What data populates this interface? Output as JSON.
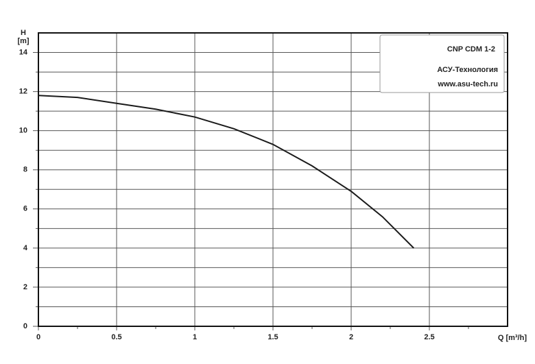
{
  "chart_data": {
    "type": "line",
    "x_label": "Q [m³/h]",
    "y_label": "H",
    "y_unit": "[m]",
    "annotations": [
      "CNP CDM 1-2",
      "АСУ-Технология",
      "www.asu-tech.ru"
    ],
    "x": [
      0,
      0.25,
      0.5,
      0.75,
      1,
      1.25,
      1.5,
      1.75,
      2,
      2.2,
      2.4
    ],
    "series": [
      {
        "color": "#1a1a1a",
        "values": [
          11.8,
          11.7,
          11.4,
          11.1,
          10.7,
          10.1,
          9.3,
          8.2,
          6.9,
          5.6,
          4.0
        ]
      }
    ],
    "xlim": [
      0,
      3
    ],
    "xticks": [
      0,
      0.5,
      1,
      1.5,
      2,
      2.5
    ],
    "xminor_ticks": [
      0.25,
      0.75,
      1.25,
      1.75,
      2.25,
      2.75
    ],
    "ylim": [
      0,
      15
    ],
    "yticks": [
      0,
      2,
      4,
      6,
      8,
      10,
      12,
      14
    ],
    "yminor_ticks": [
      1,
      3,
      5,
      7,
      9,
      11,
      13
    ],
    "grid": true
  }
}
